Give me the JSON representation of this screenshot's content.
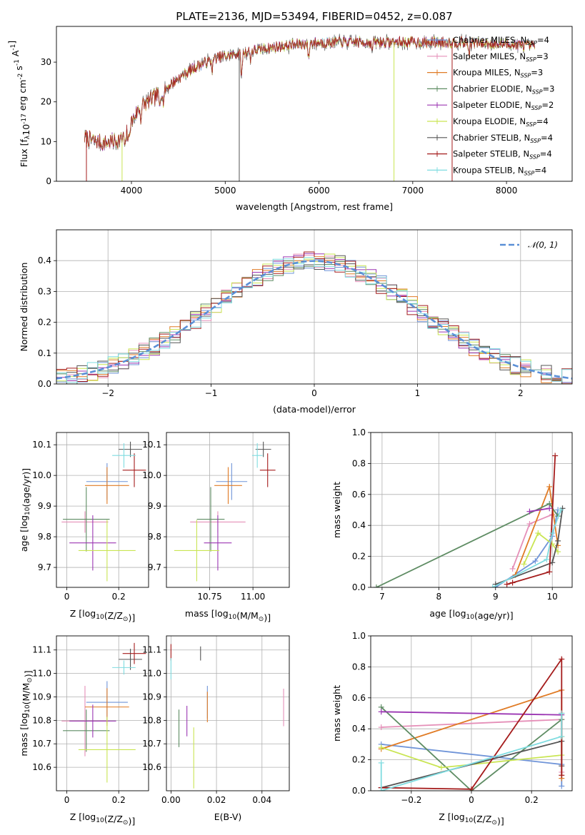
{
  "figure": {
    "title": "PLATE=2136, MJD=53494, FIBERID=0452, z=0.087",
    "colors": {
      "Chabrier MILES": "#6f94d8",
      "Salpeter MILES": "#e58fb8",
      "Kroupa MILES": "#e07b25",
      "Chabrier ELODIE": "#5e8c63",
      "Salpeter ELODIE": "#9b36b3",
      "Kroupa ELODIE": "#c9e552",
      "Chabrier STELIB": "#555555",
      "Salpeter STELIB": "#a51c1c",
      "Kroupa STELIB": "#7fdce0"
    }
  },
  "chart_data": [
    {
      "id": "spectrum",
      "type": "line",
      "title": "PLATE=2136, MJD=53494, FIBERID=0452, z=0.087",
      "xlabel": "wavelength [Angstrom, rest frame]",
      "ylabel": "Flux [fλ10⁻¹⁷ erg cm⁻² s⁻¹ A⁻¹]",
      "xlim": [
        3200,
        8700
      ],
      "ylim": [
        0,
        39
      ],
      "xticks": [
        4000,
        5000,
        6000,
        7000,
        8000
      ],
      "yticks": [
        0,
        10,
        20,
        30
      ],
      "grid": false,
      "legend_position": "top-right",
      "data_range": [
        3500,
        8300
      ],
      "continuum": [
        [
          3500,
          11
        ],
        [
          3700,
          9.5
        ],
        [
          3900,
          10.5
        ],
        [
          4000,
          15
        ],
        [
          4100,
          19
        ],
        [
          4300,
          22
        ],
        [
          4500,
          26
        ],
        [
          4700,
          29
        ],
        [
          4900,
          31
        ],
        [
          5100,
          32
        ],
        [
          5300,
          33
        ],
        [
          5600,
          34
        ],
        [
          6000,
          35
        ],
        [
          6500,
          35
        ],
        [
          7000,
          35
        ],
        [
          7500,
          35
        ],
        [
          8000,
          34.5
        ],
        [
          8300,
          34
        ]
      ],
      "legend": [
        {
          "label": "Chabrier MILES, N",
          "sub": "SSP",
          "tail": "=4",
          "color": "#6f94d8"
        },
        {
          "label": "Salpeter MILES, N",
          "sub": "SSP",
          "tail": "=3",
          "color": "#e58fb8"
        },
        {
          "label": "Kroupa MILES, N",
          "sub": "SSP",
          "tail": "=3",
          "color": "#e07b25"
        },
        {
          "label": "Chabrier ELODIE, N",
          "sub": "SSP",
          "tail": "=3",
          "color": "#5e8c63"
        },
        {
          "label": "Salpeter ELODIE, N",
          "sub": "SSP",
          "tail": "=2",
          "color": "#9b36b3"
        },
        {
          "label": "Kroupa ELODIE, N",
          "sub": "SSP",
          "tail": "=4",
          "color": "#c9e552"
        },
        {
          "label": "Chabrier STELIB, N",
          "sub": "SSP",
          "tail": "=4",
          "color": "#555555"
        },
        {
          "label": "Salpeter STELIB, N",
          "sub": "SSP",
          "tail": "=4",
          "color": "#a51c1c"
        },
        {
          "label": "Kroupa STELIB, N",
          "sub": "SSP",
          "tail": "=4",
          "color": "#7fdce0"
        }
      ]
    },
    {
      "id": "residuals",
      "type": "line",
      "xlabel": "(data-model)/error",
      "ylabel": "Normed distribution",
      "xlim": [
        -2.5,
        2.5
      ],
      "ylim": [
        0,
        0.5
      ],
      "xticks": [
        -2,
        -1,
        0,
        1,
        2
      ],
      "yticks": [
        0.0,
        0.1,
        0.2,
        0.3,
        0.4
      ],
      "grid": true,
      "legend_position": "top-right",
      "legend": "𝒩(0, 1)",
      "gaussian": {
        "mean": 0,
        "sigma": 1,
        "color": "#5a8fd6"
      },
      "bin_width": 0.1
    },
    {
      "id": "age_vs_Z",
      "type": "scatter",
      "xlabel": "Z [log₁₀(Z/Z⊙)]",
      "ylabel": "age  [log₁₀(age/yr)]",
      "xlim": [
        -0.04,
        0.315
      ],
      "ylim": [
        9.635,
        10.14
      ],
      "xticks": [
        0.0,
        0.2
      ],
      "yticks": [
        9.7,
        9.8,
        9.9,
        10.0,
        10.1
      ],
      "grid": true,
      "points": [
        {
          "model": "Chabrier MILES",
          "x": 0.155,
          "xerr": 0.08,
          "y": 9.98,
          "yerr": 0.06
        },
        {
          "model": "Salpeter MILES",
          "x": 0.07,
          "xerr": 0.09,
          "y": 9.848,
          "yerr": 0.035
        },
        {
          "model": "Kroupa MILES",
          "x": 0.155,
          "xerr": 0.085,
          "y": 9.967,
          "yerr": 0.06
        },
        {
          "model": "Chabrier ELODIE",
          "x": 0.075,
          "xerr": 0.09,
          "y": 9.857,
          "yerr": 0.105
        },
        {
          "model": "Salpeter ELODIE",
          "x": 0.1,
          "xerr": 0.09,
          "y": 9.78,
          "yerr": 0.09
        },
        {
          "model": "Kroupa ELODIE",
          "x": 0.155,
          "xerr": 0.11,
          "y": 9.755,
          "yerr": 0.1
        },
        {
          "model": "Chabrier STELIB",
          "x": 0.245,
          "xerr": 0.045,
          "y": 10.085,
          "yerr": 0.025
        },
        {
          "model": "Salpeter STELIB",
          "x": 0.26,
          "xerr": 0.045,
          "y": 10.017,
          "yerr": 0.055
        },
        {
          "model": "Kroupa STELIB",
          "x": 0.22,
          "xerr": 0.045,
          "y": 10.065,
          "yerr": 0.04
        }
      ]
    },
    {
      "id": "age_vs_mass",
      "type": "scatter",
      "xlabel": "mass [log₁₀(M/M⊙)]",
      "ylabel": "",
      "xlim": [
        10.5,
        11.21
      ],
      "ylim": [
        9.635,
        10.14
      ],
      "xticks": [
        10.75,
        11.0
      ],
      "xtick_labels": [
        "10.75",
        "11.00"
      ],
      "yticks": [
        9.7,
        9.8,
        9.9,
        10.0,
        10.1
      ],
      "grid": true,
      "points": [
        {
          "model": "Chabrier MILES",
          "x": 10.877,
          "xerr": 0.09,
          "y": 9.98,
          "yerr": 0.06
        },
        {
          "model": "Salpeter MILES",
          "x": 10.797,
          "xerr": 0.16,
          "y": 9.848,
          "yerr": 0.035
        },
        {
          "model": "Kroupa MILES",
          "x": 10.857,
          "xerr": 0.08,
          "y": 9.967,
          "yerr": 0.06
        },
        {
          "model": "Chabrier ELODIE",
          "x": 10.756,
          "xerr": 0.08,
          "y": 9.857,
          "yerr": 0.105
        },
        {
          "model": "Salpeter ELODIE",
          "x": 10.797,
          "xerr": 0.08,
          "y": 9.78,
          "yerr": 0.09
        },
        {
          "model": "Kroupa ELODIE",
          "x": 10.675,
          "xerr": 0.13,
          "y": 9.755,
          "yerr": 0.1
        },
        {
          "model": "Chabrier STELIB",
          "x": 11.06,
          "xerr": 0.045,
          "y": 10.085,
          "yerr": 0.025
        },
        {
          "model": "Salpeter STELIB",
          "x": 11.085,
          "xerr": 0.045,
          "y": 10.017,
          "yerr": 0.055
        },
        {
          "model": "Kroupa STELIB",
          "x": 11.025,
          "xerr": 0.03,
          "y": 10.065,
          "yerr": 0.04
        }
      ]
    },
    {
      "id": "mass_weight_vs_age",
      "type": "line",
      "xlabel": "age  [log₁₀(age/yr)]",
      "ylabel": "mass weight",
      "xlim": [
        6.8,
        10.35
      ],
      "ylim": [
        0,
        1.0
      ],
      "xticks": [
        7,
        8,
        9,
        10
      ],
      "yticks": [
        0.0,
        0.2,
        0.4,
        0.6,
        0.8,
        1.0
      ],
      "grid": true,
      "series": [
        {
          "model": "Chabrier MILES",
          "x": [
            9.0,
            9.7,
            10.0,
            10.1
          ],
          "y": [
            0.0,
            0.17,
            0.33,
            0.5
          ]
        },
        {
          "model": "Salpeter MILES",
          "x": [
            9.3,
            9.6,
            10.0
          ],
          "y": [
            0.12,
            0.41,
            0.47
          ]
        },
        {
          "model": "Kroupa MILES",
          "x": [
            9.35,
            9.95,
            10.1
          ],
          "y": [
            0.08,
            0.65,
            0.27
          ]
        },
        {
          "model": "Chabrier ELODIE",
          "x": [
            6.9,
            9.95,
            10.1
          ],
          "y": [
            0.0,
            0.54,
            0.46
          ]
        },
        {
          "model": "Salpeter ELODIE",
          "x": [
            9.6,
            9.95
          ],
          "y": [
            0.49,
            0.51
          ]
        },
        {
          "model": "Kroupa ELODIE",
          "x": [
            9.5,
            9.75,
            10.0,
            10.1
          ],
          "y": [
            0.15,
            0.35,
            0.28,
            0.23
          ]
        },
        {
          "model": "Chabrier STELIB",
          "x": [
            9.0,
            10.0,
            10.1,
            10.18
          ],
          "y": [
            0.02,
            0.16,
            0.3,
            0.51
          ]
        },
        {
          "model": "Salpeter STELIB",
          "x": [
            9.2,
            9.3,
            9.95,
            10.05
          ],
          "y": [
            0.02,
            0.03,
            0.1,
            0.85
          ]
        },
        {
          "model": "Kroupa STELIB",
          "x": [
            8.95,
            9.9,
            10.0,
            10.15
          ],
          "y": [
            0.0,
            0.18,
            0.35,
            0.5
          ]
        }
      ]
    },
    {
      "id": "mass_vs_Z",
      "type": "scatter",
      "xlabel": "Z [log₁₀(Z/Z⊙)]",
      "ylabel": "mass [log₁₀(M/M⊙)]",
      "xlim": [
        -0.04,
        0.315
      ],
      "ylim": [
        10.5,
        11.16
      ],
      "xticks": [
        0.0,
        0.2
      ],
      "yticks": [
        10.6,
        10.7,
        10.8,
        10.9,
        11.0,
        11.1
      ],
      "grid": true,
      "points": [
        {
          "model": "Chabrier MILES",
          "x": 0.155,
          "xerr": 0.08,
          "y": 10.877,
          "yerr": 0.09
        },
        {
          "model": "Salpeter MILES",
          "x": 0.07,
          "xerr": 0.09,
          "y": 10.797,
          "yerr": 0.15
        },
        {
          "model": "Kroupa MILES",
          "x": 0.155,
          "xerr": 0.085,
          "y": 10.857,
          "yerr": 0.08
        },
        {
          "model": "Chabrier ELODIE",
          "x": 0.075,
          "xerr": 0.09,
          "y": 10.756,
          "yerr": 0.09
        },
        {
          "model": "Salpeter ELODIE",
          "x": 0.1,
          "xerr": 0.09,
          "y": 10.797,
          "yerr": 0.07
        },
        {
          "model": "Kroupa ELODIE",
          "x": 0.155,
          "xerr": 0.11,
          "y": 10.675,
          "yerr": 0.14
        },
        {
          "model": "Chabrier STELIB",
          "x": 0.245,
          "xerr": 0.045,
          "y": 11.06,
          "yerr": 0.045
        },
        {
          "model": "Salpeter STELIB",
          "x": 0.26,
          "xerr": 0.045,
          "y": 11.085,
          "yerr": 0.045
        },
        {
          "model": "Kroupa STELIB",
          "x": 0.22,
          "xerr": 0.045,
          "y": 11.025,
          "yerr": 0.03
        }
      ]
    },
    {
      "id": "mass_vs_ebv",
      "type": "scatter",
      "xlabel": "E(B-V)",
      "ylabel": "",
      "xlim": [
        -0.002,
        0.052
      ],
      "ylim": [
        10.5,
        11.16
      ],
      "xticks": [
        0.0,
        0.02,
        0.04
      ],
      "xtick_labels": [
        "0.00",
        "0.02",
        "0.04"
      ],
      "yticks": [
        10.6,
        10.7,
        10.8,
        10.9,
        11.0,
        11.1
      ],
      "grid": true,
      "points": [
        {
          "model": "Chabrier MILES",
          "x": 0.016,
          "y": 10.877,
          "yerr": 0.07
        },
        {
          "model": "Salpeter MILES",
          "x": 0.0495,
          "y": 10.855,
          "yerr": 0.08
        },
        {
          "model": "Kroupa MILES",
          "x": 0.016,
          "y": 10.857,
          "yerr": 0.065
        },
        {
          "model": "Chabrier ELODIE",
          "x": 0.0035,
          "y": 10.766,
          "yerr": 0.08
        },
        {
          "model": "Salpeter ELODIE",
          "x": 0.007,
          "y": 10.797,
          "yerr": 0.065
        },
        {
          "model": "Kroupa ELODIE",
          "x": 0.01,
          "y": 10.64,
          "yerr": 0.13
        },
        {
          "model": "Chabrier STELIB",
          "x": 0.013,
          "y": 11.085,
          "yerr": 0.03
        },
        {
          "model": "Salpeter STELIB",
          "x": 0.0,
          "y": 11.09,
          "yerr": 0.035
        },
        {
          "model": "Kroupa STELIB",
          "x": 0.0,
          "y": 11.02,
          "yerr": 0.045
        }
      ]
    },
    {
      "id": "mass_weight_vs_Z",
      "type": "line",
      "xlabel": "Z [log₁₀(Z/Z⊙)]",
      "ylabel": "mass weight",
      "xlim": [
        -0.335,
        0.335
      ],
      "ylim": [
        0,
        1.0
      ],
      "xticks": [
        -0.2,
        0.0,
        0.2
      ],
      "yticks": [
        0.0,
        0.2,
        0.4,
        0.6,
        0.8,
        1.0
      ],
      "grid": true,
      "series": [
        {
          "model": "Chabrier MILES",
          "x": [
            -0.3,
            0.3,
            0.3
          ],
          "y": [
            0.3,
            0.17,
            0.03
          ]
        },
        {
          "model": "Salpeter MILES",
          "x": [
            -0.3,
            0.3,
            0.3
          ],
          "y": [
            0.41,
            0.46,
            0.12
          ]
        },
        {
          "model": "Kroupa MILES",
          "x": [
            -0.3,
            0.3,
            0.3
          ],
          "y": [
            0.27,
            0.65,
            0.08
          ]
        },
        {
          "model": "Chabrier ELODIE",
          "x": [
            -0.3,
            0.0,
            0.3
          ],
          "y": [
            0.54,
            0.0,
            0.46
          ]
        },
        {
          "model": "Salpeter ELODIE",
          "x": [
            -0.3,
            0.3
          ],
          "y": [
            0.51,
            0.49
          ]
        },
        {
          "model": "Kroupa ELODIE",
          "x": [
            -0.3,
            -0.1,
            0.3,
            0.3
          ],
          "y": [
            0.28,
            0.15,
            0.23,
            0.35
          ]
        },
        {
          "model": "Chabrier STELIB",
          "x": [
            -0.3,
            0.3,
            0.3,
            0.3
          ],
          "y": [
            0.02,
            0.32,
            0.5,
            0.16
          ]
        },
        {
          "model": "Salpeter STELIB",
          "x": [
            -0.3,
            0.0,
            0.3,
            0.3
          ],
          "y": [
            0.02,
            0.01,
            0.85,
            0.1
          ]
        },
        {
          "model": "Kroupa STELIB",
          "x": [
            -0.3,
            -0.3,
            0.3,
            0.3
          ],
          "y": [
            0.18,
            0.0,
            0.35,
            0.5
          ]
        }
      ]
    }
  ]
}
